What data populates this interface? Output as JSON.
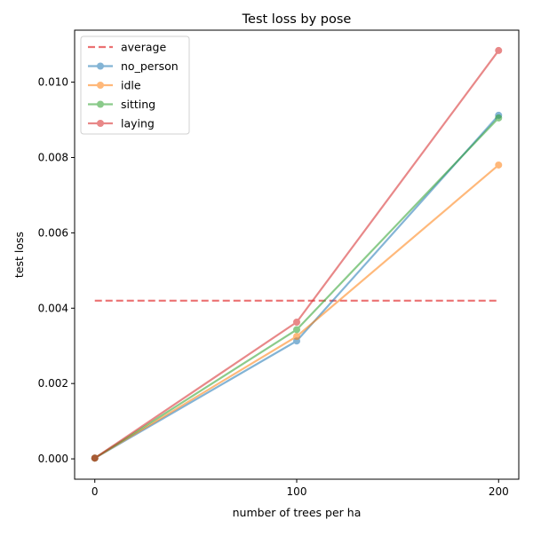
{
  "chart_data": {
    "type": "line",
    "title": "Test loss by pose",
    "xlabel": "number of trees per ha",
    "ylabel": "test loss",
    "x": [
      0,
      100,
      200
    ],
    "xlim": [
      -10,
      210
    ],
    "ylim": [
      -0.00054,
      0.01138
    ],
    "x_ticks": [
      "0",
      "100",
      "200"
    ],
    "y_ticks": [
      "0.000",
      "0.002",
      "0.004",
      "0.006",
      "0.008",
      "0.010"
    ],
    "grid": false,
    "legend_position": "upper-left",
    "reference_line": {
      "name": "average",
      "value": 0.0042,
      "x_range": [
        0,
        200
      ],
      "color": "#e8595a",
      "style": "dashed"
    },
    "series": [
      {
        "name": "no_person",
        "color": "#1f77b4",
        "values": [
          2e-05,
          0.00313,
          0.00912
        ]
      },
      {
        "name": "idle",
        "color": "#ff7f0e",
        "values": [
          2e-05,
          0.00325,
          0.0078
        ]
      },
      {
        "name": "sitting",
        "color": "#2ca02c",
        "values": [
          2e-05,
          0.00343,
          0.00905
        ]
      },
      {
        "name": "laying",
        "color": "#d62728",
        "values": [
          2e-05,
          0.00363,
          0.01084
        ]
      }
    ]
  }
}
